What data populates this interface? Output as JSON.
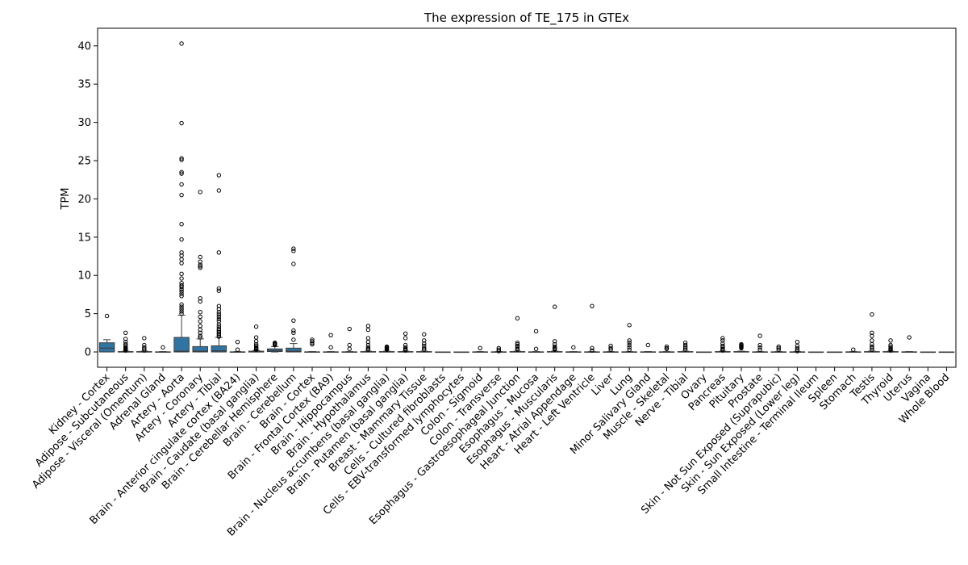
{
  "chart_data": {
    "type": "box",
    "title": "The expression of TE_175 in GTEx",
    "xlabel": "",
    "ylabel": "TPM",
    "ylim": [
      -2,
      42.3
    ],
    "yticks": [
      0,
      5,
      10,
      15,
      20,
      25,
      30,
      35,
      40
    ],
    "box_color": "#3274a1",
    "categories": [
      "Kidney - Cortex",
      "Adipose - Subcutaneous",
      "Adipose - Visceral (Omentum)",
      "Adrenal Gland",
      "Artery - Aorta",
      "Artery - Coronary",
      "Artery - Tibial",
      "Brain - Anterior cingulate cortex (BA24)",
      "Brain - Caudate (basal ganglia)",
      "Brain - Cerebellar Hemisphere",
      "Brain - Cerebellum",
      "Brain - Cortex",
      "Brain - Frontal Cortex (BA9)",
      "Brain - Hippocampus",
      "Brain - Hypothalamus",
      "Brain - Nucleus accumbens (basal ganglia)",
      "Brain - Putamen (basal ganglia)",
      "Breast - Mammary Tissue",
      "Cells - Cultured fibroblasts",
      "Cells - EBV-transformed lymphocytes",
      "Colon - Sigmoid",
      "Colon - Transverse",
      "Esophagus - Gastroesophageal Junction",
      "Esophagus - Mucosa",
      "Esophagus - Muscularis",
      "Heart - Atrial Appendage",
      "Heart - Left Ventricle",
      "Liver",
      "Lung",
      "Minor Salivary Gland",
      "Muscle - Skeletal",
      "Nerve - Tibial",
      "Ovary",
      "Pancreas",
      "Pituitary",
      "Prostate",
      "Skin - Not Sun Exposed (Suprapubic)",
      "Skin - Sun Exposed (Lower leg)",
      "Small Intestine - Terminal Ileum",
      "Spleen",
      "Stomach",
      "Testis",
      "Thyroid",
      "Uterus",
      "Vagina",
      "Whole Blood"
    ],
    "boxes": [
      {
        "q1": 0.0,
        "median": 0.5,
        "q3": 1.2,
        "whislo": 0,
        "whishi": 1.6,
        "fliers": [
          4.7
        ]
      },
      {
        "q1": 0,
        "median": 0,
        "q3": 0.05,
        "whislo": 0,
        "whishi": 0.1,
        "fliers": [
          2.5,
          1.7,
          1.3,
          1.0,
          0.8,
          0.6,
          0.5,
          0.4,
          0.3,
          0.2
        ]
      },
      {
        "q1": 0,
        "median": 0,
        "q3": 0.05,
        "whislo": 0,
        "whishi": 0.1,
        "fliers": [
          1.8,
          0.9,
          0.6,
          0.4,
          0.2
        ]
      },
      {
        "q1": 0,
        "median": 0,
        "q3": 0.02,
        "whislo": 0,
        "whishi": 0.05,
        "fliers": [
          0.6
        ]
      },
      {
        "q1": 0,
        "median": 0.1,
        "q3": 1.9,
        "whislo": 0,
        "whishi": 4.8,
        "fliers": [
          40.3,
          29.9,
          25.3,
          25.1,
          23.5,
          23.3,
          21.9,
          20.5,
          16.7,
          14.7,
          13.0,
          12.6,
          12.1,
          11.6,
          10.2,
          9.6,
          9.0,
          8.7,
          8.5,
          8.2,
          7.9,
          7.6,
          7.3,
          6.2,
          5.9,
          5.6,
          5.3,
          5.0
        ]
      },
      {
        "q1": 0,
        "median": 0.1,
        "q3": 0.7,
        "whislo": 0,
        "whishi": 1.7,
        "fliers": [
          20.9,
          12.4,
          11.8,
          11.4,
          11.2,
          11.0,
          7.0,
          6.6,
          5.2,
          4.6,
          4.0,
          3.4,
          2.9,
          2.5,
          2.1,
          1.9
        ]
      },
      {
        "q1": 0,
        "median": 0.15,
        "q3": 0.8,
        "whislo": 0,
        "whishi": 1.9,
        "fliers": [
          23.1,
          21.1,
          13.0,
          8.3,
          8.0,
          6.0,
          5.6,
          5.2,
          4.9,
          4.6,
          4.3,
          4.0,
          3.6,
          3.3,
          3.0,
          2.8,
          2.6,
          2.4,
          2.2,
          2.0
        ]
      },
      {
        "q1": 0,
        "median": 0,
        "q3": 0.02,
        "whislo": 0,
        "whishi": 0.05,
        "fliers": [
          1.3,
          0.3
        ]
      },
      {
        "q1": 0,
        "median": 0,
        "q3": 0.1,
        "whislo": 0,
        "whishi": 0.2,
        "fliers": [
          3.3,
          1.9,
          1.4,
          1.0,
          0.8,
          0.6,
          0.5,
          0.4,
          0.3
        ]
      },
      {
        "q1": 0.05,
        "median": 0.2,
        "q3": 0.4,
        "whislo": 0,
        "whishi": 0.7,
        "fliers": [
          1.2,
          1.1,
          1.0,
          0.9
        ]
      },
      {
        "q1": 0.0,
        "median": 0.1,
        "q3": 0.5,
        "whislo": 0,
        "whishi": 1.1,
        "fliers": [
          13.5,
          13.2,
          11.5,
          4.1,
          2.8,
          2.5,
          1.6
        ]
      },
      {
        "q1": 0,
        "median": 0,
        "q3": 0.02,
        "whislo": 0,
        "whishi": 0.05,
        "fliers": [
          1.6,
          1.4,
          1.2,
          1.0
        ]
      },
      {
        "q1": 0,
        "median": 0,
        "q3": 0.02,
        "whislo": 0,
        "whishi": 0.05,
        "fliers": [
          2.2,
          0.6
        ]
      },
      {
        "q1": 0,
        "median": 0,
        "q3": 0.02,
        "whislo": 0,
        "whishi": 0.05,
        "fliers": [
          3.0,
          0.9,
          0.4
        ]
      },
      {
        "q1": 0,
        "median": 0,
        "q3": 0.05,
        "whislo": 0,
        "whishi": 0.1,
        "fliers": [
          3.4,
          2.9,
          1.8,
          1.3,
          0.9,
          0.6,
          0.4,
          0.3
        ]
      },
      {
        "q1": 0,
        "median": 0,
        "q3": 0.05,
        "whislo": 0,
        "whishi": 0.1,
        "fliers": [
          0.7,
          0.6,
          0.5,
          0.4,
          0.3
        ]
      },
      {
        "q1": 0,
        "median": 0,
        "q3": 0.05,
        "whislo": 0,
        "whishi": 0.1,
        "fliers": [
          2.4,
          1.8,
          0.9,
          0.6,
          0.4,
          0.3,
          0.2
        ]
      },
      {
        "q1": 0,
        "median": 0,
        "q3": 0.05,
        "whislo": 0,
        "whishi": 0.1,
        "fliers": [
          2.3,
          1.5,
          1.1,
          0.8,
          0.5,
          0.3
        ]
      },
      {
        "q1": 0,
        "median": 0,
        "q3": 0.0,
        "whislo": 0,
        "whishi": 0.0,
        "fliers": []
      },
      {
        "q1": 0,
        "median": 0,
        "q3": 0.0,
        "whislo": 0,
        "whishi": 0.0,
        "fliers": []
      },
      {
        "q1": 0,
        "median": 0,
        "q3": 0.02,
        "whislo": 0,
        "whishi": 0.05,
        "fliers": [
          0.5
        ]
      },
      {
        "q1": 0,
        "median": 0,
        "q3": 0.02,
        "whislo": 0,
        "whishi": 0.05,
        "fliers": [
          0.5,
          0.3,
          0.1
        ]
      },
      {
        "q1": 0,
        "median": 0,
        "q3": 0.05,
        "whislo": 0,
        "whishi": 0.1,
        "fliers": [
          4.4,
          1.2,
          1.0,
          0.8,
          0.6,
          0.4,
          0.3
        ]
      },
      {
        "q1": 0,
        "median": 0,
        "q3": 0.02,
        "whislo": 0,
        "whishi": 0.05,
        "fliers": [
          2.7,
          0.4
        ]
      },
      {
        "q1": 0,
        "median": 0,
        "q3": 0.05,
        "whislo": 0,
        "whishi": 0.1,
        "fliers": [
          5.9,
          1.4,
          1.0,
          0.7,
          0.5,
          0.4,
          0.3
        ]
      },
      {
        "q1": 0,
        "median": 0,
        "q3": 0.02,
        "whislo": 0,
        "whishi": 0.05,
        "fliers": [
          0.6
        ]
      },
      {
        "q1": 0,
        "median": 0,
        "q3": 0.02,
        "whislo": 0,
        "whishi": 0.05,
        "fliers": [
          6.0,
          0.5,
          0.2
        ]
      },
      {
        "q1": 0,
        "median": 0,
        "q3": 0.02,
        "whislo": 0,
        "whishi": 0.05,
        "fliers": [
          0.8,
          0.5,
          0.3
        ]
      },
      {
        "q1": 0,
        "median": 0,
        "q3": 0.02,
        "whislo": 0,
        "whishi": 0.05,
        "fliers": [
          3.5,
          1.5,
          1.2,
          0.9,
          0.6,
          0.3
        ]
      },
      {
        "q1": 0,
        "median": 0,
        "q3": 0.02,
        "whislo": 0,
        "whishi": 0.05,
        "fliers": [
          0.9
        ]
      },
      {
        "q1": 0,
        "median": 0,
        "q3": 0.02,
        "whislo": 0,
        "whishi": 0.05,
        "fliers": [
          0.7,
          0.5,
          0.4
        ]
      },
      {
        "q1": 0,
        "median": 0,
        "q3": 0.05,
        "whislo": 0,
        "whishi": 0.1,
        "fliers": [
          1.2,
          0.9,
          0.7,
          0.5,
          0.3
        ]
      },
      {
        "q1": 0,
        "median": 0,
        "q3": 0.0,
        "whislo": 0,
        "whishi": 0.0,
        "fliers": []
      },
      {
        "q1": 0,
        "median": 0,
        "q3": 0.05,
        "whislo": 0,
        "whishi": 0.1,
        "fliers": [
          1.8,
          1.5,
          1.1,
          0.8,
          0.6,
          0.4,
          0.3,
          0.2
        ]
      },
      {
        "q1": 0,
        "median": 0,
        "q3": 0.05,
        "whislo": 0,
        "whishi": 0.1,
        "fliers": [
          1.0,
          0.9,
          0.8,
          0.7,
          0.6,
          0.5
        ]
      },
      {
        "q1": 0,
        "median": 0,
        "q3": 0.02,
        "whislo": 0,
        "whishi": 0.05,
        "fliers": [
          2.1,
          0.9,
          0.6,
          0.3
        ]
      },
      {
        "q1": 0,
        "median": 0,
        "q3": 0.02,
        "whislo": 0,
        "whishi": 0.05,
        "fliers": [
          0.7,
          0.5,
          0.3
        ]
      },
      {
        "q1": 0,
        "median": 0,
        "q3": 0.02,
        "whislo": 0,
        "whishi": 0.05,
        "fliers": [
          1.3,
          0.8,
          0.5,
          0.3,
          0.1
        ]
      },
      {
        "q1": 0,
        "median": 0,
        "q3": 0.0,
        "whislo": 0,
        "whishi": 0.0,
        "fliers": []
      },
      {
        "q1": 0,
        "median": 0,
        "q3": 0.0,
        "whislo": 0,
        "whishi": 0.0,
        "fliers": []
      },
      {
        "q1": 0,
        "median": 0,
        "q3": 0.02,
        "whislo": 0,
        "whishi": 0.05,
        "fliers": [
          0.3
        ]
      },
      {
        "q1": 0,
        "median": 0,
        "q3": 0.05,
        "whislo": 0,
        "whishi": 0.1,
        "fliers": [
          4.9,
          2.5,
          2.1,
          1.5,
          1.0,
          0.7,
          0.5,
          0.3
        ]
      },
      {
        "q1": 0,
        "median": 0,
        "q3": 0.05,
        "whislo": 0,
        "whishi": 0.1,
        "fliers": [
          1.5,
          0.9,
          0.7,
          0.5,
          0.4,
          0.3,
          0.2
        ]
      },
      {
        "q1": 0,
        "median": 0,
        "q3": 0.02,
        "whislo": 0,
        "whishi": 0.05,
        "fliers": [
          1.9
        ]
      },
      {
        "q1": 0,
        "median": 0,
        "q3": 0.0,
        "whislo": 0,
        "whishi": 0.0,
        "fliers": []
      },
      {
        "q1": 0,
        "median": 0,
        "q3": 0.0,
        "whislo": 0,
        "whishi": 0.0,
        "fliers": []
      }
    ]
  }
}
